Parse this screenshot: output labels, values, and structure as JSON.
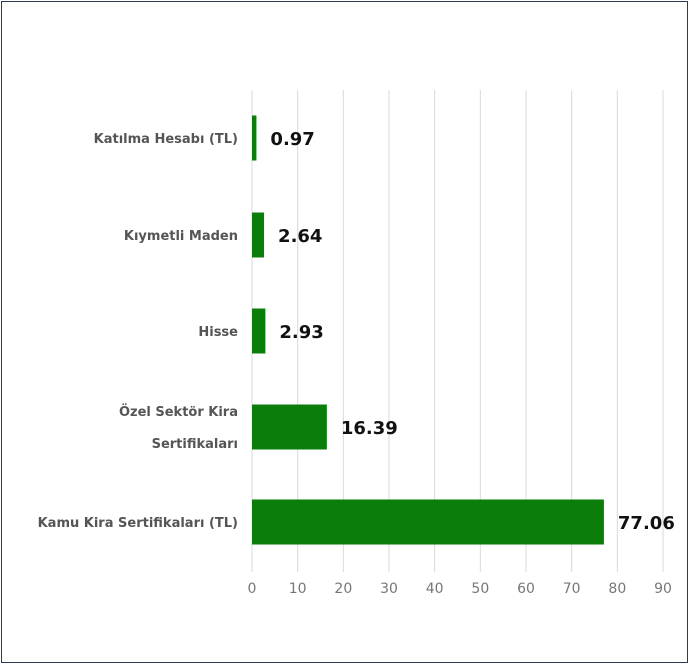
{
  "chart_data": {
    "type": "bar",
    "orientation": "horizontal",
    "categories": [
      [
        "Katılma Hesabı (TL)"
      ],
      [
        "Kıymetli Maden"
      ],
      [
        "Hisse"
      ],
      [
        "Özel Sektör Kira",
        "Sertifikaları"
      ],
      [
        "Kamu Kira Sertifikaları (TL)"
      ]
    ],
    "values": [
      0.97,
      2.64,
      2.93,
      16.39,
      77.06
    ],
    "value_labels": [
      "0.97",
      "2.64",
      "2.93",
      "16.39",
      "77.06"
    ],
    "xlim": [
      0,
      90
    ],
    "ticks": [
      0,
      10,
      20,
      30,
      40,
      50,
      60,
      70,
      80,
      90
    ],
    "grid": true,
    "title": "",
    "xlabel": "",
    "ylabel": "",
    "colors": {
      "bar": "#0a7d0a",
      "grid": "#d9d9d9",
      "frame": "#2b3a55"
    }
  }
}
